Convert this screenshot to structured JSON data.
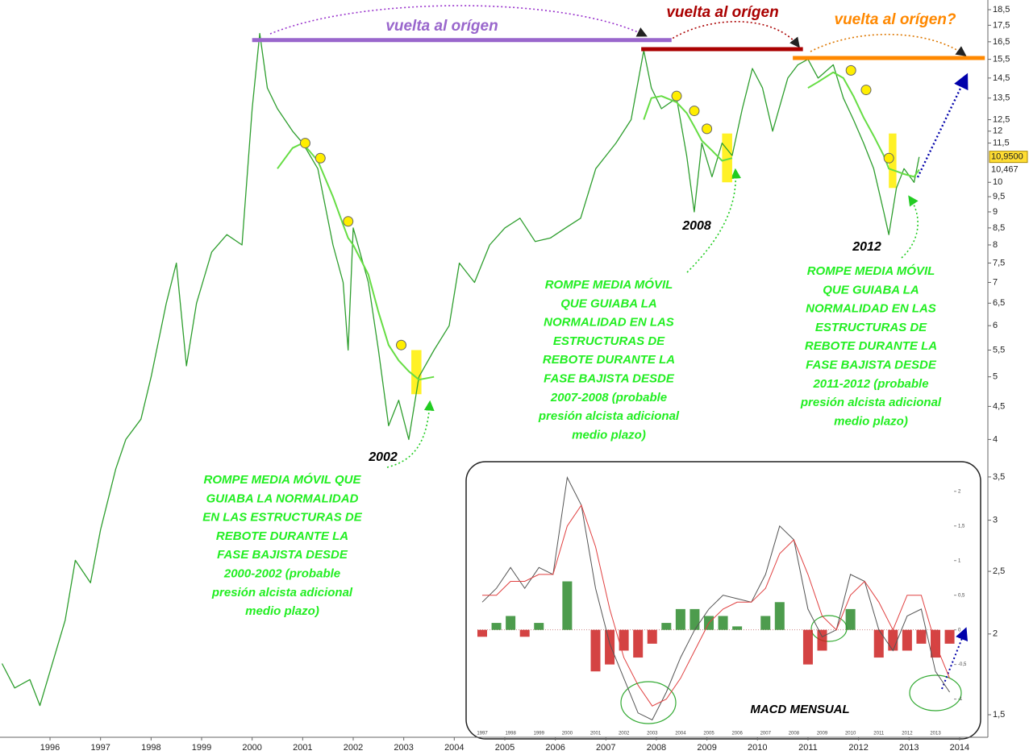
{
  "chart_data": {
    "type": "line",
    "log_scale": true,
    "x": [
      1995.05,
      1995.3,
      1995.6,
      1995.8,
      1996.0,
      1996.3,
      1996.5,
      1996.8,
      1997.0,
      1997.3,
      1997.5,
      1997.8,
      1998.0,
      1998.3,
      1998.5,
      1998.7,
      1998.9,
      1999.2,
      1999.5,
      1999.8,
      2000.0,
      2000.15,
      2000.3,
      2000.5,
      2000.8,
      2001.0,
      2001.3,
      2001.6,
      2001.8,
      2001.9,
      2002.0,
      2002.3,
      2002.5,
      2002.7,
      2002.9,
      2003.1,
      2003.3,
      2003.6,
      2003.9,
      2004.1,
      2004.4,
      2004.7,
      2005.0,
      2005.3,
      2005.6,
      2005.9,
      2006.2,
      2006.5,
      2006.8,
      2007.2,
      2007.5,
      2007.75,
      2007.9,
      2008.1,
      2008.4,
      2008.6,
      2008.75,
      2008.9,
      2009.1,
      2009.3,
      2009.5,
      2009.7,
      2009.9,
      2010.1,
      2010.3,
      2010.6,
      2010.8,
      2011.0,
      2011.2,
      2011.5,
      2011.7,
      2011.9,
      2012.1,
      2012.3,
      2012.5,
      2012.6,
      2012.75,
      2012.9,
      2013.1,
      2013.2
    ],
    "series": [
      {
        "color": "#2e9e2e",
        "values": [
          1.8,
          1.65,
          1.7,
          1.55,
          1.75,
          2.1,
          2.6,
          2.4,
          2.9,
          3.6,
          4.0,
          4.3,
          5.0,
          6.5,
          7.5,
          5.2,
          6.5,
          7.8,
          8.3,
          8.0,
          13.0,
          17.0,
          14.0,
          13.0,
          12.0,
          11.5,
          10.5,
          8.0,
          7.0,
          5.5,
          8.5,
          7.0,
          5.5,
          4.2,
          4.6,
          4.0,
          5.0,
          5.5,
          6.0,
          7.5,
          7.0,
          8.0,
          8.5,
          8.8,
          8.1,
          8.2,
          8.5,
          8.8,
          10.5,
          11.5,
          12.5,
          16.0,
          14.0,
          13.0,
          13.5,
          11.0,
          9.0,
          11.5,
          10.2,
          11.5,
          11.0,
          13.0,
          15.0,
          14.0,
          12.0,
          14.5,
          15.2,
          15.5,
          14.5,
          15.2,
          13.5,
          12.5,
          11.5,
          10.5,
          9.0,
          8.3,
          9.8,
          10.5,
          10.0,
          10.95
        ]
      },
      {
        "color": "#66dd44",
        "values": [
          null,
          null,
          null,
          null,
          null,
          null,
          null,
          null,
          null,
          null,
          null,
          null,
          null,
          null,
          null,
          null,
          null,
          null,
          null,
          null,
          null,
          null,
          null,
          10.5,
          11.3,
          11.5,
          10.8,
          9.5,
          8.6,
          8.2,
          8.0,
          7.2,
          6.3,
          5.6,
          5.3,
          5.1,
          4.95,
          5.0,
          null,
          null,
          null,
          null,
          null,
          null,
          null,
          null,
          null,
          null,
          null,
          null,
          null,
          12.5,
          13.5,
          13.6,
          13.3,
          12.8,
          12.2,
          11.6,
          11.2,
          10.8,
          10.9,
          null,
          null,
          null,
          null,
          null,
          null,
          14.0,
          14.3,
          14.8,
          14.5,
          13.6,
          12.6,
          11.8,
          11.0,
          10.5,
          10.4,
          10.3,
          10.2,
          10.467
        ]
      }
    ],
    "xlim": [
      1995.01,
      2014.56
    ],
    "xticks": [
      1996,
      1997,
      1998,
      1999,
      2000,
      2001,
      2002,
      2003,
      2004,
      2005,
      2006,
      2007,
      2008,
      2009,
      2010,
      2011,
      2012,
      2013,
      2014
    ],
    "ylim": [
      1.5,
      18.5
    ],
    "yticks": [
      {
        "value": 1.5,
        "label": "1,5"
      },
      2,
      {
        "value": 2.5,
        "label": "2,5"
      },
      3,
      {
        "value": 3.5,
        "label": "3,5"
      },
      4,
      {
        "value": 4.5,
        "label": "4,5"
      },
      5,
      {
        "value": 5.5,
        "label": "5,5"
      },
      6,
      {
        "value": 6.5,
        "label": "6,5"
      },
      7,
      {
        "value": 7.5,
        "label": "7,5"
      },
      8,
      {
        "value": 8.5,
        "label": "8,5"
      },
      9,
      {
        "value": 9.5,
        "label": "9,5"
      },
      10,
      {
        "value": 11.5,
        "label": "11,5"
      },
      12,
      {
        "value": 12.5,
        "label": "12,5"
      },
      {
        "value": 13.5,
        "label": "13,5"
      },
      {
        "value": 14.5,
        "label": "14,5"
      },
      {
        "value": 15.5,
        "label": "15,5"
      },
      {
        "value": 16.5,
        "label": "16,5"
      },
      {
        "value": 17.5,
        "label": "17,5"
      },
      {
        "value": 18.5,
        "label": "18,5"
      }
    ],
    "last_price": {
      "value": 10.95,
      "label": "10,9500"
    },
    "last_average": {
      "value": 10.467,
      "label": "10,467"
    },
    "markers": {
      "color": "#ffee00",
      "x": [
        2001.05,
        2001.35,
        2001.9,
        2002.95,
        2008.4,
        2008.75,
        2009.0,
        2011.85,
        2012.15,
        2012.6
      ],
      "values": [
        11.5,
        10.9,
        8.7,
        5.6,
        13.6,
        12.9,
        12.1,
        14.9,
        13.9,
        10.9
      ]
    },
    "highlights": [
      {
        "from": 2003.15,
        "to": 2003.35,
        "low": 4.7,
        "high": 5.5
      },
      {
        "from": 2009.3,
        "to": 2009.5,
        "low": 10.0,
        "high": 11.9
      },
      {
        "from": 2012.6,
        "to": 2012.75,
        "low": 9.8,
        "high": 11.9
      }
    ],
    "levels": [
      {
        "value": 16.6,
        "from": 2000.0,
        "to": 2008.3,
        "color": "#9966cc",
        "label": "vuelta al orígen"
      },
      {
        "value": 16.07,
        "from": 2007.7,
        "to": 2010.9,
        "color": "#aa0000",
        "label": "vuelta al orígen"
      },
      {
        "value": 15.57,
        "from": 2010.7,
        "to": 2014.5,
        "color": "#ff8800",
        "label": "vuelta al orígen?"
      }
    ],
    "year_labels": [
      "2002",
      "2008",
      "2012"
    ],
    "notes": [
      [
        "ROMPE MEDIA MÓVIL QUE",
        "GUIABA LA NORMALIDAD",
        "EN LAS ESTRUCTURAS DE",
        "REBOTE DURANTE LA",
        "FASE BAJISTA DESDE",
        "2000-2002 (probable",
        "presión alcista adicional",
        "medio plazo)"
      ],
      [
        "ROMPE MEDIA MÓVIL",
        "QUE GUIABA LA",
        "NORMALIDAD EN LAS",
        "ESTRUCTURAS DE",
        "REBOTE DURANTE LA",
        "FASE BAJISTA DESDE",
        "2007-2008 (probable",
        "presión alcista adicional",
        "medio plazo)"
      ],
      [
        "ROMPE MEDIA MÓVIL",
        "QUE GUIABA LA",
        "NORMALIDAD EN LAS",
        "ESTRUCTURAS DE",
        "REBOTE DURANTE LA",
        "FASE BAJISTA DESDE",
        "2011-2012 (probable",
        "presión alcista adicional",
        "medio plazo)"
      ]
    ],
    "macd": {
      "title": "MACD MENSUAL",
      "x": [
        1997,
        1997.5,
        1998,
        1998.5,
        1999,
        1999.5,
        2000,
        2000.5,
        2001,
        2001.5,
        2002,
        2002.5,
        2003,
        2003.5,
        2004,
        2004.5,
        2005,
        2005.5,
        2006,
        2006.5,
        2007,
        2007.5,
        2008,
        2008.5,
        2009,
        2009.5,
        2010,
        2010.5,
        2011,
        2011.5,
        2012,
        2012.5,
        2013,
        2013.5
      ],
      "macd": [
        0.4,
        0.6,
        0.9,
        0.6,
        0.9,
        0.8,
        2.2,
        1.8,
        0.6,
        -0.2,
        -0.7,
        -1.2,
        -1.3,
        -0.9,
        -0.4,
        0.0,
        0.3,
        0.5,
        0.45,
        0.4,
        0.8,
        1.5,
        1.3,
        0.3,
        -0.1,
        0.0,
        0.8,
        0.7,
        0.0,
        -0.3,
        0.2,
        0.3,
        -0.6,
        -0.9
      ],
      "signal": [
        0.5,
        0.5,
        0.7,
        0.7,
        0.8,
        0.8,
        1.5,
        1.8,
        1.2,
        0.3,
        -0.4,
        -0.8,
        -1.1,
        -1.0,
        -0.7,
        -0.3,
        0.1,
        0.3,
        0.4,
        0.4,
        0.6,
        1.1,
        1.3,
        0.8,
        0.2,
        0.0,
        0.5,
        0.7,
        0.4,
        0.0,
        0.5,
        0.5,
        -0.2,
        -0.7
      ],
      "histogram": [
        -0.1,
        0.1,
        0.2,
        -0.1,
        0.1,
        0.0,
        0.7,
        0.0,
        -0.6,
        -0.5,
        -0.3,
        -0.4,
        -0.2,
        0.1,
        0.3,
        0.3,
        0.2,
        0.2,
        0.05,
        0.0,
        0.2,
        0.4,
        0.0,
        -0.5,
        -0.3,
        0.0,
        0.3,
        0.0,
        -0.4,
        -0.3,
        -0.3,
        -0.2,
        -0.4,
        -0.2
      ],
      "macd_color": "#555555",
      "signal_color": "#e04040",
      "up_color": "#2e8b2e",
      "down_color": "#cc2222",
      "xlim": [
        1997,
        2013
      ],
      "xticks": [
        1997,
        1998,
        1999,
        2000,
        2001,
        2002,
        2003,
        2004,
        2005,
        2006,
        2007,
        2008,
        2009,
        2010,
        2011,
        2012,
        2013
      ],
      "ylim": [
        -1.4,
        2.3
      ],
      "yticks": [
        -1,
        {
          "value": -0.5,
          "label": "-0,5"
        },
        0,
        {
          "value": 0.5,
          "label": "0,5"
        },
        1,
        {
          "value": 1.5,
          "label": "1,5"
        },
        2
      ]
    }
  }
}
